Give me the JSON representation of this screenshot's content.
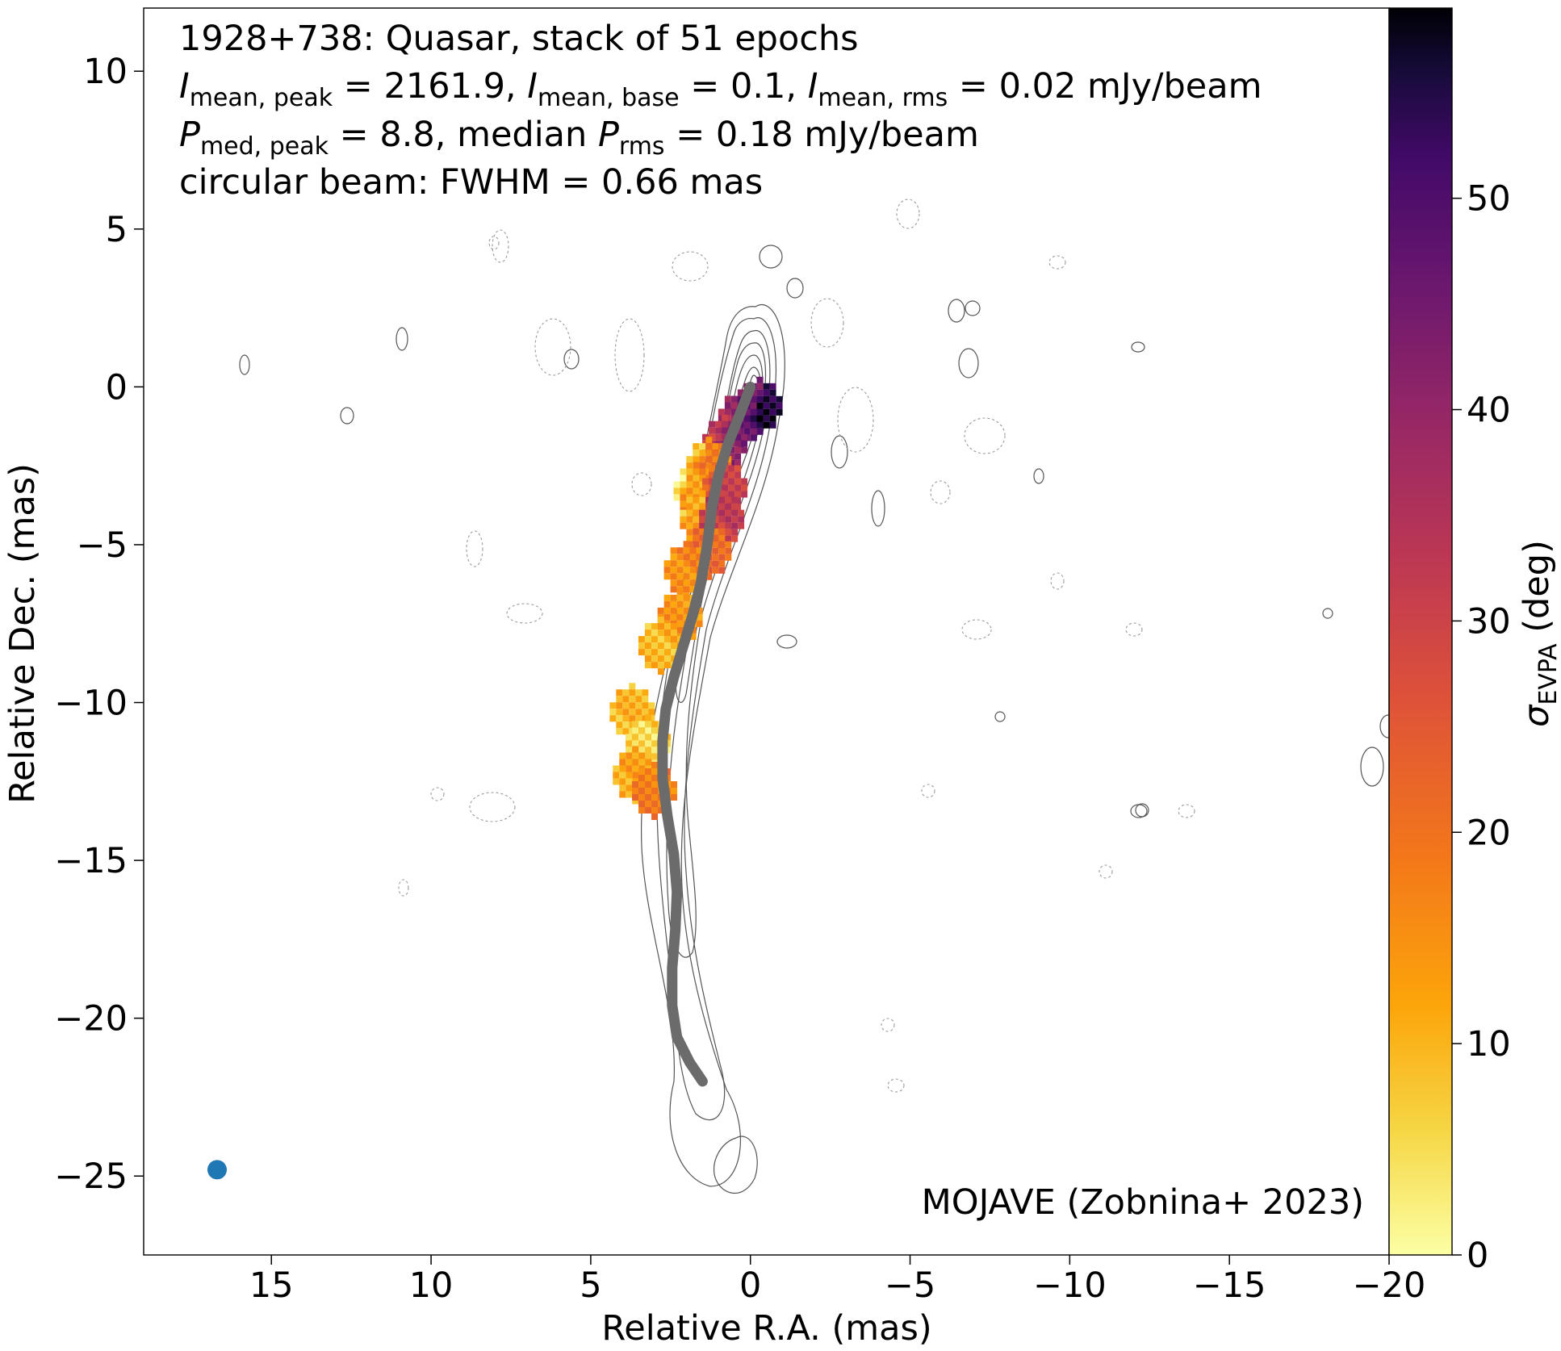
{
  "chart_data": {
    "type": "heatmap",
    "title_lines": [
      "1928+738: Quasar, stack of 51 epochs",
      "I_mean,peak = 2161.9, I_mean,base = 0.1, I_mean,rms = 0.02 mJy/beam",
      "P_med,peak = 8.8, median P_rms = 0.18 mJy/beam",
      "circular beam: FWHM = 0.66 mas"
    ],
    "line1": "1928+738: Quasar, stack of 51 epochs",
    "line2": {
      "I": "I",
      "sub1": "mean, peak",
      "v1": " = 2161.9, ",
      "sub2": "mean, base",
      "v2": " = 0.1, ",
      "sub3": "mean, rms",
      "v3": " = 0.02 mJy/beam"
    },
    "line3": {
      "P": "P",
      "sub1": "med, peak",
      "v1": " = 8.8, median ",
      "sub2": "rms",
      "v2": " = 0.18 mJy/beam"
    },
    "line4": "circular beam: FWHM = 0.66 mas",
    "credit": "MOJAVE (Zobnina+ 2023)",
    "xlabel": "Relative R.A. (mas)",
    "ylabel": "Relative Dec. (mas)",
    "colorbar_label": {
      "sigma": "σ",
      "sub": "EVPA",
      "unit": " (deg)"
    },
    "xlim": [
      19,
      -20
    ],
    "ylim": [
      -27.5,
      12
    ],
    "x_ticks": [
      15,
      10,
      5,
      0,
      -5,
      -10,
      -15,
      -20
    ],
    "y_ticks": [
      10,
      5,
      0,
      -5,
      -10,
      -15,
      -20,
      -25
    ],
    "colorbar_ticks": [
      0,
      10,
      20,
      30,
      40,
      50
    ],
    "colorbar_range": [
      0,
      59
    ],
    "colormap": "inferno_r",
    "ridgeline": {
      "color": "#6b6b6b",
      "points": [
        [
          0.0,
          0.0
        ],
        [
          0.3,
          -0.8
        ],
        [
          0.7,
          -1.8
        ],
        [
          1.0,
          -2.8
        ],
        [
          1.2,
          -3.8
        ],
        [
          1.35,
          -5.0
        ],
        [
          1.55,
          -6.2
        ],
        [
          1.8,
          -7.2
        ],
        [
          2.1,
          -8.2
        ],
        [
          2.4,
          -9.2
        ],
        [
          2.65,
          -10.2
        ],
        [
          2.75,
          -11.2
        ],
        [
          2.75,
          -12.4
        ],
        [
          2.6,
          -13.6
        ],
        [
          2.4,
          -14.8
        ],
        [
          2.3,
          -16.0
        ],
        [
          2.35,
          -17.2
        ],
        [
          2.45,
          -18.4
        ],
        [
          2.45,
          -19.6
        ],
        [
          2.3,
          -20.6
        ],
        [
          1.9,
          -21.4
        ],
        [
          1.5,
          -22.0
        ]
      ]
    },
    "beam": {
      "x": 16.7,
      "y": -24.8,
      "fwhm_mas": 0.66,
      "color": "#1f77b4"
    },
    "evpa_regions": [
      {
        "x": 0.3,
        "y": -1.0,
        "sigma": 48
      },
      {
        "x": -0.3,
        "y": -0.6,
        "sigma": 55
      },
      {
        "x": 0.8,
        "y": -1.8,
        "sigma": 42
      },
      {
        "x": 1.3,
        "y": -2.5,
        "sigma": 18
      },
      {
        "x": 1.7,
        "y": -3.3,
        "sigma": 14
      },
      {
        "x": 0.8,
        "y": -3.2,
        "sigma": 30
      },
      {
        "x": 1.5,
        "y": -4.2,
        "sigma": 12
      },
      {
        "x": 0.9,
        "y": -4.2,
        "sigma": 32
      },
      {
        "x": 1.3,
        "y": -5.2,
        "sigma": 22
      },
      {
        "x": 2.0,
        "y": -5.8,
        "sigma": 16
      },
      {
        "x": 2.2,
        "y": -7.3,
        "sigma": 14
      },
      {
        "x": 2.8,
        "y": -8.2,
        "sigma": 10
      },
      {
        "x": 3.7,
        "y": -10.3,
        "sigma": 10
      },
      {
        "x": 3.2,
        "y": -11.3,
        "sigma": 6
      },
      {
        "x": 3.6,
        "y": -12.3,
        "sigma": 12
      },
      {
        "x": 3.0,
        "y": -12.8,
        "sigma": 18
      }
    ]
  }
}
